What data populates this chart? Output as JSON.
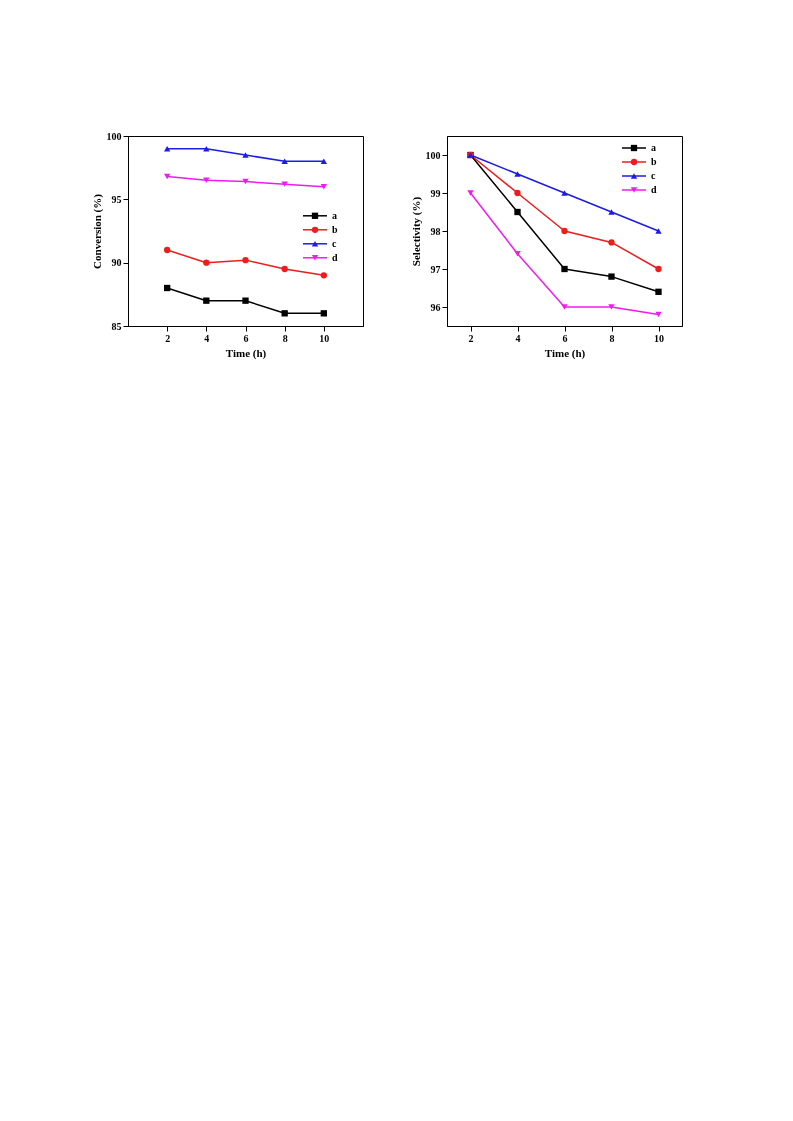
{
  "chart_data": [
    {
      "type": "line",
      "xlabel": "Time (h)",
      "ylabel": "Conversion (%)",
      "x": [
        2,
        4,
        6,
        8,
        10
      ],
      "xlim": [
        0,
        12
      ],
      "xticks": [
        2,
        4,
        6,
        8,
        10
      ],
      "ylim": [
        85,
        100
      ],
      "yticks": [
        85,
        90,
        95,
        100
      ],
      "grid": false,
      "legend": "right",
      "series": [
        {
          "name": "a",
          "color": "#000000",
          "marker": "square",
          "values": [
            88,
            87,
            87,
            86,
            86
          ]
        },
        {
          "name": "b",
          "color": "#ee1c1c",
          "marker": "circle",
          "values": [
            91,
            90,
            90.2,
            89.5,
            89
          ]
        },
        {
          "name": "c",
          "color": "#1c1ce6",
          "marker": "triangle",
          "values": [
            99,
            99,
            98.5,
            98,
            98
          ]
        },
        {
          "name": "d",
          "color": "#ee1cee",
          "marker": "triangle-down",
          "values": [
            96.8,
            96.5,
            96.4,
            96.2,
            96
          ]
        }
      ]
    },
    {
      "type": "line",
      "xlabel": "Time (h)",
      "ylabel": "Selectivity (%)",
      "x": [
        2,
        4,
        6,
        8,
        10
      ],
      "xlim": [
        1,
        11
      ],
      "xticks": [
        2,
        4,
        6,
        8,
        10
      ],
      "ylim": [
        95.5,
        100.5
      ],
      "yticks": [
        96,
        97,
        98,
        99,
        100
      ],
      "grid": false,
      "legend": "top right",
      "series": [
        {
          "name": "a",
          "color": "#000000",
          "marker": "square",
          "values": [
            100,
            98.5,
            97,
            96.8,
            96.4
          ]
        },
        {
          "name": "b",
          "color": "#ee1c1c",
          "marker": "circle",
          "values": [
            100,
            99,
            98,
            97.7,
            97
          ]
        },
        {
          "name": "c",
          "color": "#1c1ce6",
          "marker": "triangle",
          "values": [
            100,
            99.5,
            99,
            98.5,
            98
          ]
        },
        {
          "name": "d",
          "color": "#ee1cee",
          "marker": "triangle-down",
          "values": [
            99,
            97.4,
            96,
            96,
            95.8
          ]
        }
      ]
    }
  ]
}
